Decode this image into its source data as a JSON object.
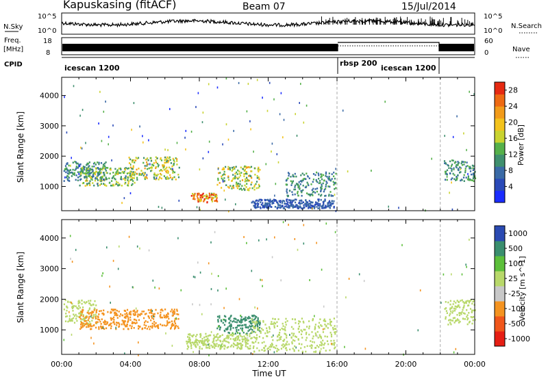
{
  "header": {
    "station": "Kapuskasing (fitACF)",
    "beam": "Beam 07",
    "date": "15/Jul/2014"
  },
  "strip_labels": {
    "nsky": "N.Sky",
    "nsky_top": "10^5",
    "nsky_bottom": "10^0",
    "nsearch": "N.Search",
    "nsearch_top": "10^5",
    "nsearch_bottom": "10^0",
    "freq_line1": "Freq.",
    "freq_line2": "[MHz]",
    "freq_top": "18",
    "freq_bottom": "8",
    "nave": "Nave",
    "nave_top": "60",
    "nave_bottom": "0",
    "cpid": "CPID"
  },
  "cpid_segments": [
    {
      "label": "icescan 1200",
      "start": 0,
      "end": 16
    },
    {
      "label": "rbsp 200",
      "start": 16,
      "end": 22
    },
    {
      "label": "icescan 1200",
      "start": 22,
      "end": 24
    }
  ],
  "rbsp_inline_label": "icescan 1200",
  "colors": {
    "power": [
      "#1a2cff",
      "#2a4ab8",
      "#3a6aa6",
      "#3f8f6e",
      "#55b04a",
      "#c9d330",
      "#f3c31d",
      "#f29b1a",
      "#ee6a13",
      "#e62a12"
    ],
    "velocity": [
      "#e61e14",
      "#f0561a",
      "#f49320",
      "#c8c8c8",
      "#b8d86a",
      "#5cbf3a",
      "#3a8e6e",
      "#2a4ab2"
    ]
  },
  "chart_data": [
    {
      "type": "heatmap",
      "title": "Power",
      "xlabel": "",
      "ylabel": "Slant Range [km]",
      "colorbar_label": "Power [dB]",
      "xlim": [
        0,
        24
      ],
      "ylim": [
        200,
        4600
      ],
      "xticks": [
        "00:00",
        "04:00",
        "08:00",
        "12:00",
        "16:00",
        "20:00",
        "00:00"
      ],
      "yticks": [
        1000,
        2000,
        3000,
        4000
      ],
      "colorbar_ticks": [
        4,
        8,
        12,
        16,
        20,
        24,
        28
      ],
      "colorbar_range": [
        0,
        30
      ],
      "regions": [
        {
          "t0": 0.1,
          "t1": 2.6,
          "r0": 1200,
          "r1": 1850,
          "value": 10
        },
        {
          "t0": 1.0,
          "t1": 4.2,
          "r0": 1050,
          "r1": 1650,
          "value": 14
        },
        {
          "t0": 3.8,
          "t1": 6.8,
          "r0": 1250,
          "r1": 2000,
          "value": 16
        },
        {
          "t0": 7.5,
          "t1": 9.0,
          "r0": 500,
          "r1": 800,
          "value": 24
        },
        {
          "t0": 9.0,
          "t1": 11.5,
          "r0": 900,
          "r1": 1700,
          "value": 16
        },
        {
          "t0": 11.0,
          "t1": 15.8,
          "r0": 300,
          "r1": 600,
          "value": 6
        },
        {
          "t0": 13.0,
          "t1": 15.9,
          "r0": 700,
          "r1": 1500,
          "value": 10
        },
        {
          "t0": 22.2,
          "t1": 24.0,
          "r0": 1200,
          "r1": 1900,
          "value": 10
        }
      ]
    },
    {
      "type": "heatmap",
      "title": "Velocity",
      "xlabel": "Time UT",
      "ylabel": "Slant Range [km]",
      "colorbar_label": "Velocity [m s^-1]",
      "xlim": [
        0,
        24
      ],
      "ylim": [
        200,
        4600
      ],
      "xticks": [
        "00:00",
        "04:00",
        "08:00",
        "12:00",
        "16:00",
        "20:00",
        "00:00"
      ],
      "yticks": [
        1000,
        2000,
        3000,
        4000
      ],
      "colorbar_ticks": [
        1000,
        500,
        100,
        25,
        -25,
        -100,
        -500,
        -1000
      ],
      "regions": [
        {
          "t0": 0.1,
          "t1": 2.0,
          "r0": 1200,
          "r1": 2000,
          "value": 0
        },
        {
          "t0": 1.0,
          "t1": 6.8,
          "r0": 1050,
          "r1": 1700,
          "value": -300
        },
        {
          "t0": 7.2,
          "t1": 11.0,
          "r0": 400,
          "r1": 900,
          "value": 0
        },
        {
          "t0": 9.0,
          "t1": 11.5,
          "r0": 900,
          "r1": 1500,
          "value": 150
        },
        {
          "t0": 11.0,
          "t1": 15.9,
          "r0": 300,
          "r1": 1400,
          "value": 10
        },
        {
          "t0": 22.2,
          "t1": 24.0,
          "r0": 1200,
          "r1": 2000,
          "value": 0
        }
      ]
    }
  ],
  "x_axis_label": "Time UT",
  "time_ticks": [
    "00:00",
    "04:00",
    "08:00",
    "12:00",
    "16:00",
    "20:00",
    "00:00"
  ]
}
